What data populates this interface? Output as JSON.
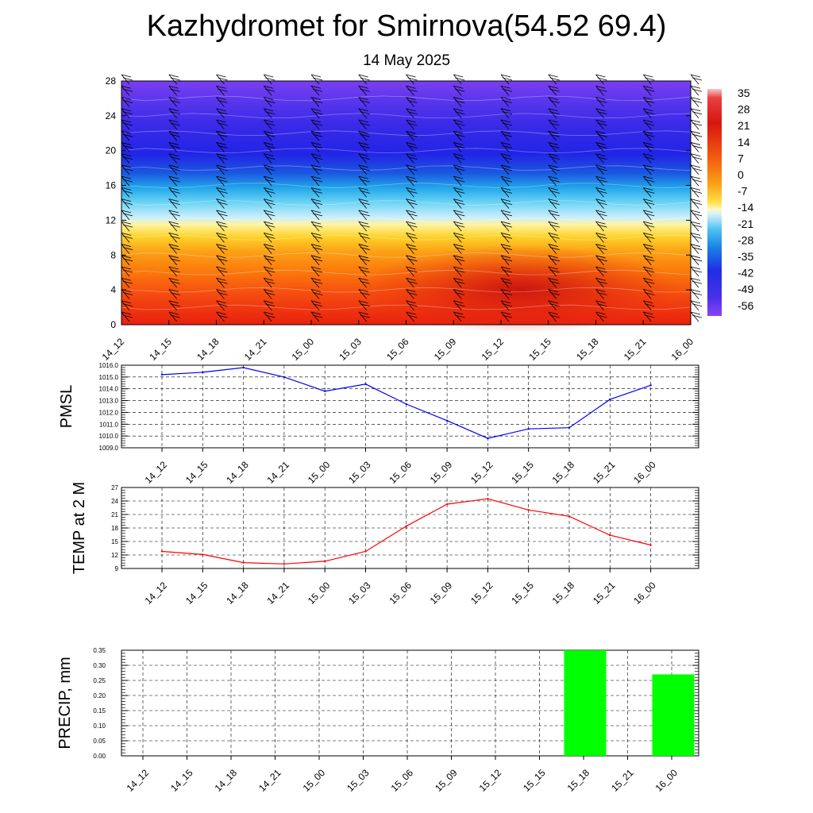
{
  "page": {
    "title": "Kazhydromet for Smirnova(54.52 69.4)",
    "subtitle": "14 May 2025"
  },
  "colors": {
    "pmsl_line": "#0000ff",
    "temp_line": "#ff0000",
    "precip_bar": "#00ff00",
    "grid": "#000000"
  },
  "chart_data": [
    {
      "id": "cross-section",
      "type": "heatmap",
      "title": "",
      "xlabel": "",
      "ylabel": "",
      "categories": [
        "14_12",
        "14_15",
        "14_18",
        "14_21",
        "15_00",
        "15_03",
        "15_06",
        "15_09",
        "15_12",
        "15_15",
        "15_18",
        "15_21",
        "16_00"
      ],
      "y_ticks": [
        "0",
        "4",
        "8",
        "12",
        "16",
        "20",
        "24",
        "28"
      ],
      "ylim": [
        0,
        28
      ],
      "colorbar_labels": [
        "35",
        "28",
        "21",
        "14",
        "7",
        "0",
        "-7",
        "-14",
        "-21",
        "-28",
        "-35",
        "-42",
        "-49",
        "-56"
      ],
      "colorbar_range": [
        -60,
        38
      ],
      "wind_barbs": true
    },
    {
      "id": "pmsl",
      "type": "line",
      "ylabel": "PMSL",
      "categories": [
        "14_12",
        "14_15",
        "14_18",
        "14_21",
        "15_00",
        "15_03",
        "15_06",
        "15_09",
        "15_12",
        "15_15",
        "15_18",
        "15_21",
        "16_00"
      ],
      "y_ticks": [
        "1009.0",
        "1010.0",
        "1011.0",
        "1012.0",
        "1013.0",
        "1014.0",
        "1015.0",
        "1016.0"
      ],
      "ylim": [
        1009,
        1016
      ],
      "values": [
        1015.2,
        1015.4,
        1015.8,
        1015.0,
        1013.8,
        1014.4,
        1012.7,
        1011.3,
        1009.8,
        1010.6,
        1010.7,
        1013.1,
        1014.3
      ]
    },
    {
      "id": "temp",
      "type": "line",
      "ylabel": "TEMP at 2 M",
      "categories": [
        "14_12",
        "14_15",
        "14_18",
        "14_21",
        "15_00",
        "15_03",
        "15_06",
        "15_09",
        "15_12",
        "15_15",
        "15_18",
        "15_21",
        "16_00"
      ],
      "y_ticks": [
        "9",
        "12",
        "15",
        "18",
        "21",
        "24",
        "27"
      ],
      "ylim": [
        9,
        27
      ],
      "values": [
        12.8,
        12.1,
        10.3,
        10.0,
        10.6,
        12.8,
        18.4,
        23.3,
        24.5,
        22.0,
        20.6,
        16.4,
        14.2
      ]
    },
    {
      "id": "precip",
      "type": "bar",
      "ylabel": "PRECIP, mm",
      "categories": [
        "14_12",
        "14_15",
        "14_18",
        "14_21",
        "15_00",
        "15_03",
        "15_06",
        "15_09",
        "15_12",
        "15_15",
        "15_18",
        "15_21",
        "16_00"
      ],
      "y_ticks": [
        "0.00",
        "0.05",
        "0.10",
        "0.15",
        "0.20",
        "0.25",
        "0.30",
        "0.35"
      ],
      "ylim": [
        0,
        0.35
      ],
      "values": [
        0,
        0,
        0,
        0,
        0,
        0,
        0,
        0,
        0,
        0,
        0.35,
        0,
        0.27
      ]
    }
  ]
}
